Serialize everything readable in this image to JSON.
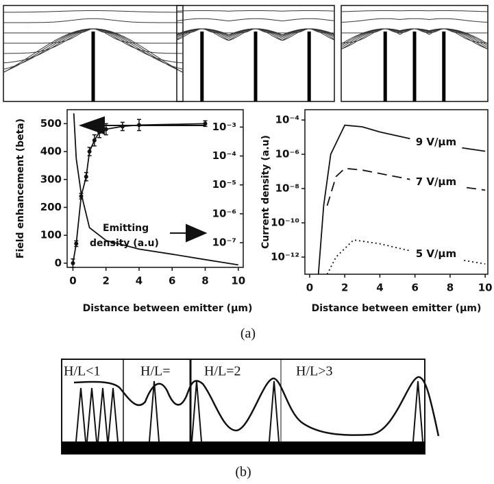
{
  "panel_labels": [
    "(a)",
    "(b)"
  ],
  "chart_data": [
    {
      "type": "line",
      "xlabel": "Distance between emitter (μm)",
      "ylabel": "Field enhancement (beta)",
      "annotation": [
        "Emitting",
        "density (a.u)"
      ],
      "xlim": [
        -0.35,
        10.3
      ],
      "xticks": [
        0,
        2,
        4,
        6,
        8,
        10
      ],
      "ylim": [
        -15,
        550
      ],
      "yticks": [
        0,
        100,
        200,
        300,
        400,
        500
      ],
      "y2lim": [
        1.4e-08,
        0.004
      ],
      "y2log": true,
      "y2ticks": [
        {
          "value": 0.001,
          "label": "10⁻³"
        },
        {
          "value": 0.0001,
          "label": "10⁻⁴"
        },
        {
          "value": 1e-05,
          "label": "10⁻⁵"
        },
        {
          "value": 1e-06,
          "label": "10⁻⁶"
        },
        {
          "value": 1e-07,
          "label": "10⁻⁷"
        }
      ],
      "series": [
        {
          "color": "#111111",
          "x": [
            0,
            0.2,
            0.5,
            0.8,
            1,
            1.3,
            1.6,
            2,
            3,
            4,
            8
          ],
          "values": [
            0,
            70,
            240,
            310,
            400,
            440,
            470,
            480,
            490,
            495,
            500
          ],
          "errors": [
            15,
            10,
            10,
            15,
            15,
            20,
            20,
            20,
            15,
            20,
            10
          ]
        },
        {
          "color": "#111111",
          "axis": "y2",
          "x": [
            0.05,
            0.2,
            0.5,
            1,
            2,
            4,
            6,
            8,
            10
          ],
          "values": [
            0.003,
            8e-05,
            5e-06,
            3.3e-07,
            1.2e-07,
            6e-08,
            4e-08,
            2.6e-08,
            1.7e-08
          ]
        }
      ]
    },
    {
      "type": "line",
      "xlabel": "Distance between emitter (μm)",
      "ylabel": "Current density (a.u)",
      "xlim": [
        -0.27,
        10.15
      ],
      "xticks": [
        0,
        2,
        4,
        6,
        8,
        10
      ],
      "ylim": [
        1e-13,
        0.0004
      ],
      "ylog": true,
      "yticks": [
        {
          "value": 0.0001,
          "label": "10⁻⁴"
        },
        {
          "value": 1e-06,
          "label": "10⁻⁶"
        },
        {
          "value": 1e-08,
          "label": "10⁻⁸"
        },
        {
          "value": 1e-10,
          "label": "10⁻¹⁰"
        },
        {
          "value": 1e-12,
          "label": "10⁻¹²"
        }
      ],
      "series": [
        {
          "name": "9 V/μm",
          "color": "#111111",
          "dash": "solid",
          "x": [
            0.5,
            0.8,
            1.2,
            2,
            3,
            4,
            6,
            8,
            10
          ],
          "values": [
            1e-13,
            1e-09,
            1e-06,
            5e-05,
            4e-05,
            2e-05,
            7e-06,
            3e-06,
            1.5e-06
          ]
        },
        {
          "name": "7 V/μm",
          "color": "#111111",
          "dash": "dashed",
          "x": [
            1,
            1.5,
            2,
            3,
            6,
            10
          ],
          "values": [
            1e-09,
            5e-08,
            1.5e-07,
            1.2e-07,
            3e-08,
            8e-09
          ]
        },
        {
          "name": "5 V/μm",
          "color": "#111111",
          "dash": "dotted",
          "x": [
            1,
            1.5,
            2.5,
            4,
            6,
            10
          ],
          "values": [
            1e-13,
            1e-12,
            1e-11,
            6e-12,
            2e-12,
            4e-13
          ]
        }
      ]
    }
  ],
  "diagram_b": {
    "labels": [
      "H/L<1",
      "H/L=",
      "H/L=2",
      "H/L>3"
    ]
  }
}
